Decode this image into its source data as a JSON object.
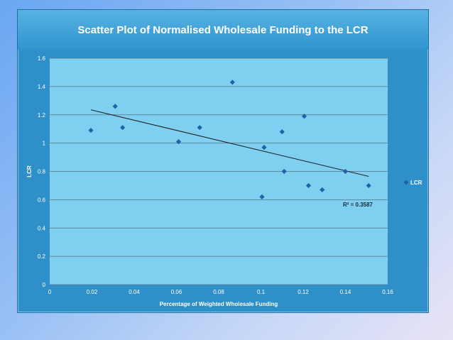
{
  "chart_data": {
    "type": "scatter",
    "title": "Scatter Plot of Normalised Wholesale Funding to the LCR",
    "xlabel": "Percentage of Weighted Wholesale Funding",
    "ylabel": "LCR",
    "xlim": [
      0,
      0.16
    ],
    "ylim": [
      0,
      1.6
    ],
    "x_ticks": [
      "0",
      "0.02",
      "0.04",
      "0.06",
      "0.08",
      "0.1",
      "0.12",
      "0.14",
      "0.16"
    ],
    "y_ticks": [
      "0",
      "0.2",
      "0.4",
      "0.6",
      "0.8",
      "1",
      "1.2",
      "1.4",
      "1.6"
    ],
    "grid": "horizontal",
    "legend": {
      "position": "right",
      "entries": [
        "LCR"
      ]
    },
    "series": [
      {
        "name": "LCR",
        "points": [
          {
            "x": 0.0195,
            "y": 1.09
          },
          {
            "x": 0.031,
            "y": 1.26
          },
          {
            "x": 0.0345,
            "y": 1.11
          },
          {
            "x": 0.061,
            "y": 1.01
          },
          {
            "x": 0.071,
            "y": 1.11
          },
          {
            "x": 0.0865,
            "y": 1.43
          },
          {
            "x": 0.1005,
            "y": 0.62
          },
          {
            "x": 0.1015,
            "y": 0.97
          },
          {
            "x": 0.11,
            "y": 1.08
          },
          {
            "x": 0.111,
            "y": 0.8
          },
          {
            "x": 0.1205,
            "y": 1.19
          },
          {
            "x": 0.1225,
            "y": 0.7
          },
          {
            "x": 0.129,
            "y": 0.67
          },
          {
            "x": 0.14,
            "y": 0.8
          },
          {
            "x": 0.151,
            "y": 0.7
          }
        ]
      }
    ],
    "trendline": {
      "x": [
        0.0195,
        0.151
      ],
      "y": [
        1.235,
        0.765
      ]
    },
    "annotation": "R² = 0.3587",
    "colors": {
      "plot_bg": "#7fd0f0",
      "marker": "#1f62a8",
      "trend": "#1a1a1a",
      "grid": "#5b6f80"
    }
  }
}
